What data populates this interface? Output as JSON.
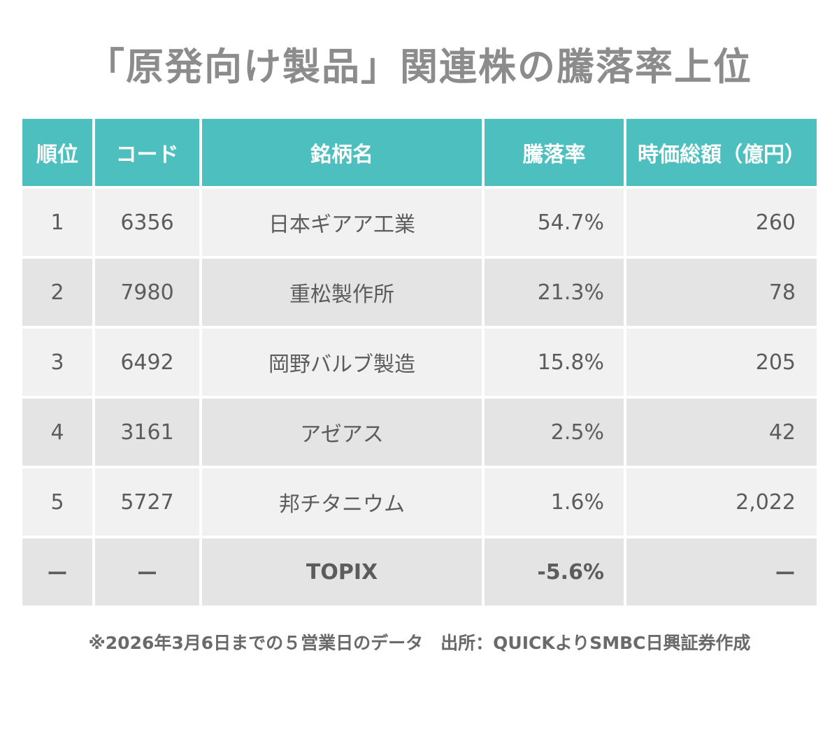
{
  "chart_data": {
    "type": "table",
    "title": "「原発向け製品」関連株の騰落率上位",
    "columns": [
      "順位",
      "コード",
      "銘柄名",
      "騰落率",
      "時価総額（億円）"
    ],
    "rows": [
      {
        "rank": "1",
        "code": "6356",
        "name": "日本ギアア工業",
        "rate": "54.7%",
        "cap": "260"
      },
      {
        "rank": "2",
        "code": "7980",
        "name": "重松製作所",
        "rate": "21.3%",
        "cap": "78"
      },
      {
        "rank": "3",
        "code": "6492",
        "name": "岡野バルブ製造",
        "rate": "15.8%",
        "cap": "205"
      },
      {
        "rank": "4",
        "code": "3161",
        "name": "アゼアス",
        "rate": "2.5%",
        "cap": "42"
      },
      {
        "rank": "5",
        "code": "5727",
        "name": "邦チタニウム",
        "rate": "1.6%",
        "cap": "2,022"
      },
      {
        "rank": "ー",
        "code": "ー",
        "name": "TOPIX",
        "rate": "-5.6%",
        "cap": "ー"
      }
    ],
    "rates": [
      54.7,
      21.3,
      15.8,
      2.5,
      1.6,
      -5.6
    ],
    "market_caps": [
      260,
      78,
      205,
      42,
      2022
    ],
    "note": "※2026年3月6日までの５営業日のデータ　出所：QUICKよりSMBC日興証券作成",
    "colors": {
      "header_bg": "#4dbfbe",
      "header_text": "#ffffff",
      "row_light": "#f1f1f1",
      "row_dark": "#e4e4e4",
      "body_text": "#5c5c5c",
      "title_text": "#8c8c8c"
    }
  }
}
